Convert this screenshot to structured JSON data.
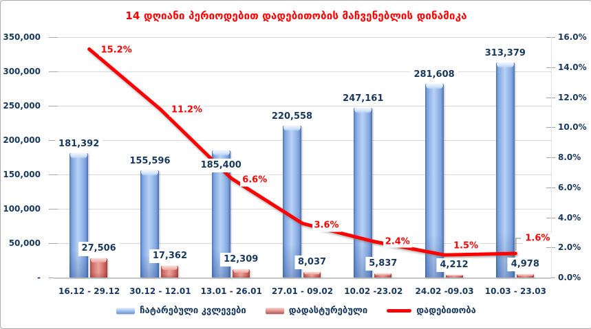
{
  "title": {
    "text": "14 დღიანი პერიოდებით დადებითობის მაჩვენებლის დინამიკა"
  },
  "colors": {
    "title": "#ff0000",
    "axis_text": "#17375e",
    "value_label_text": "#17375e",
    "line": "#ff0000",
    "grid": "#d9d9d9",
    "bar_blue": "#95b3d7",
    "bar_red": "#d99694"
  },
  "chart_data": {
    "type": "combo_bar_line",
    "title": "14 დღიანი პერიოდებით დადებითობის მაჩვენებლის დინამიკა",
    "categories": [
      "16.12 - 29.12",
      "30.12 - 12.01",
      "13.01 - 26.01",
      "27.01 - 09.02",
      "10.02 -23.02",
      "24.02 -09.03",
      "10.03 - 23.03"
    ],
    "series": [
      {
        "name": "ჩატარებული კვლევები",
        "type": "bar",
        "axis": "left",
        "color": "#95b3d7",
        "values": [
          181392,
          155596,
          185400,
          220558,
          247161,
          281608,
          313379
        ],
        "labels": [
          "181,392",
          "155,596",
          "185,400",
          "220,558",
          "247,161",
          "281,608",
          "313,379"
        ]
      },
      {
        "name": "დადასტურებული",
        "type": "bar",
        "axis": "left",
        "color": "#d99694",
        "values": [
          27506,
          17362,
          12309,
          8037,
          5837,
          4212,
          4978
        ],
        "labels": [
          "27,506",
          "17,362",
          "12,309",
          "8,037",
          "5,837",
          "4,212",
          "4,978"
        ]
      },
      {
        "name": "დადებითობა",
        "type": "line",
        "axis": "right",
        "color": "#ff0000",
        "values": [
          15.2,
          11.2,
          6.6,
          3.6,
          2.4,
          1.5,
          1.6
        ],
        "labels": [
          "15.2%",
          "11.2%",
          "6.6%",
          "3.6%",
          "2.4%",
          "1.5%",
          "1.6%"
        ]
      }
    ],
    "left_axis": {
      "min": 0,
      "max": 350000,
      "step": 50000,
      "tick_labels": [
        "-",
        "50,000",
        "100,000",
        "150,000",
        "200,000",
        "250,000",
        "300,000",
        "350,000"
      ]
    },
    "right_axis": {
      "min": 0,
      "max": 16,
      "step": 2,
      "tick_labels": [
        "0.0%",
        "2.0%",
        "4.0%",
        "6.0%",
        "8.0%",
        "10.0%",
        "12.0%",
        "14.0%",
        "16.0%"
      ]
    },
    "grid": true,
    "legend_position": "bottom"
  }
}
